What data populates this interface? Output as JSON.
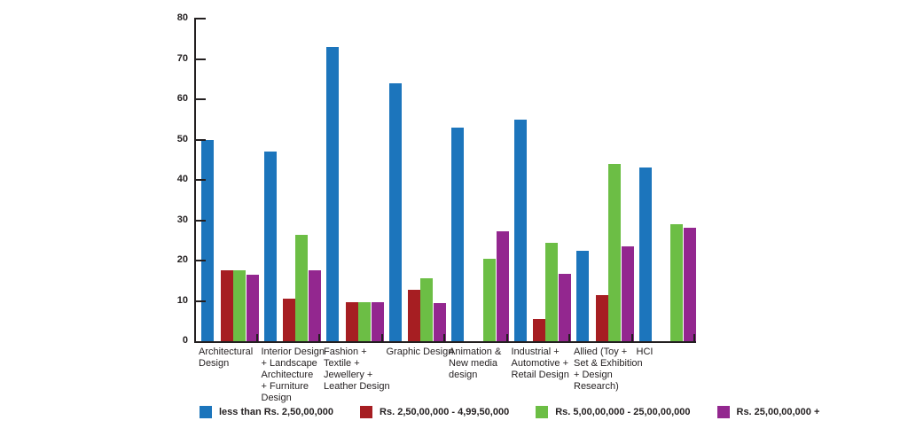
{
  "chart_data": {
    "type": "bar",
    "title": "",
    "categories": [
      "Architectural\nDesign",
      "Interior Design\n+ Landscape\nArchitecture\n+ Furniture\nDesign",
      "Fashion +\nTextile +\nJewellery +\nLeather Design",
      "Graphic Design",
      "Animation &\nNew media\ndesign",
      "Industrial +\nAutomotive +\nRetail Design",
      "Allied (Toy +\nSet & Exhibition\n+ Design\nResearch)",
      "HCI"
    ],
    "series": [
      {
        "name": "less than Rs. 2,50,00,000",
        "color": "#1c75bc",
        "values": [
          50,
          47,
          73,
          64,
          53,
          55,
          22.5,
          43
        ]
      },
      {
        "name": "Rs. 2,50,00,000 - 4,99,50,000",
        "color": "#a61e22",
        "values": [
          17.5,
          10.5,
          9.7,
          12.7,
          null,
          5.5,
          11.5,
          null
        ]
      },
      {
        "name": "Rs. 5,00,00,000 - 25,00,00,000",
        "color": "#6cbe45",
        "values": [
          17.5,
          26.3,
          9.7,
          15.6,
          20.5,
          24.4,
          44,
          29
        ]
      },
      {
        "name": "Rs. 25,00,00,000 +",
        "color": "#93278f",
        "values": [
          16.5,
          17.5,
          9.7,
          9.5,
          27.2,
          16.6,
          23.5,
          28.2
        ]
      }
    ],
    "xlabel": "",
    "ylabel": "",
    "ylim": [
      0,
      80
    ],
    "yticks": [
      0,
      10,
      20,
      30,
      40,
      50,
      60,
      70,
      80
    ],
    "grid": false,
    "legend_position": "bottom",
    "axis_color": "#231f20",
    "background_color": "#ffffff"
  }
}
